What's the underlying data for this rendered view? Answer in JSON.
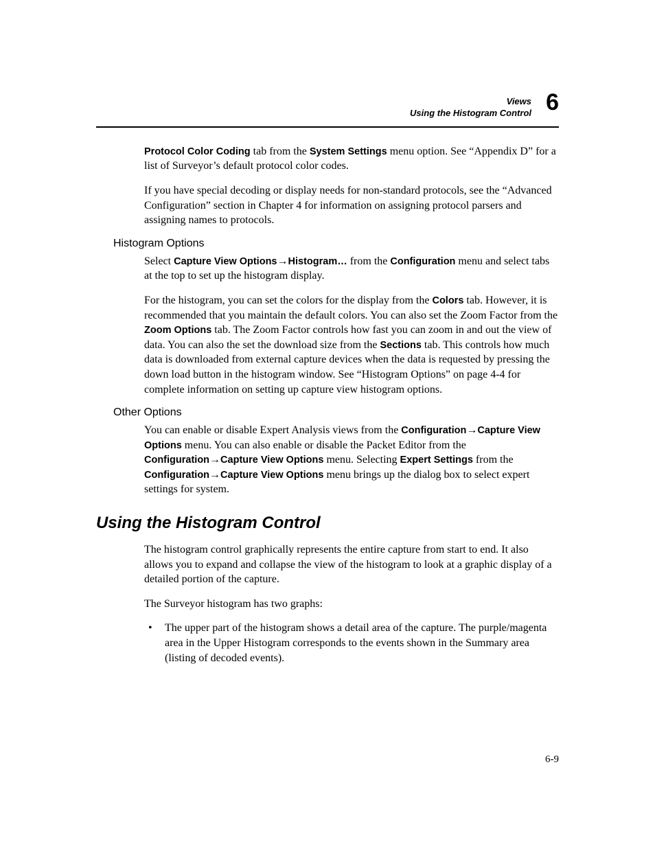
{
  "header": {
    "line1": "Views",
    "line2": "Using the Histogram Control",
    "chapter": "6"
  },
  "para1": {
    "bold1": "Protocol Color Coding",
    "t1": " tab from the ",
    "bold2": "System Settings",
    "t2": " menu option. See “Appendix D” for a list of Surveyor’s default protocol color codes."
  },
  "para2": "If you have special decoding or display needs for non-standard protocols, see the “Advanced Configuration” section in Chapter 4 for information on assigning protocol parsers and assigning names to protocols.",
  "histogram": {
    "heading": "Histogram Options",
    "p1": {
      "t0": "Select ",
      "b1": "Capture View Options",
      "arrow": "→",
      "b2": "Histogram…",
      "t1": " from the ",
      "b3": "Configuration",
      "t2": " menu and select tabs at the top to set up the histogram display."
    },
    "p2": {
      "t0": "For the histogram, you can set the colors for the display from the ",
      "b1": "Colors",
      "t1": " tab. However, it is recommended that you maintain the default colors. You can also set the Zoom Factor from the ",
      "b2": "Zoom Options",
      "t2": " tab. The Zoom Factor controls how fast you can zoom in and out the view of data. You can also the set the download size from the ",
      "b3": "Sections",
      "t3": " tab. This controls how much data is downloaded from external capture devices when the data is requested by pressing the down load button in the histogram window. See “Histogram Options” on page 4-4 for complete information on setting up capture view histogram options."
    }
  },
  "other": {
    "heading": "Other Options",
    "p1": {
      "t0": "You can enable or disable Expert Analysis views from the ",
      "b1": "Configuration",
      "arrow": "→",
      "b2": "Capture View Options",
      "t1": " menu. You can also enable or disable the Packet Editor from the ",
      "b3": "Configuration",
      "b4": "Capture View Options",
      "t2": " menu. Selecting ",
      "b5": "Expert Settings",
      "t3": " from the ",
      "b6": "Configuration",
      "b7": "Capture View Options",
      "t4": " menu brings up the dialog box to select expert settings for system."
    }
  },
  "section": {
    "heading": "Using the Histogram Control",
    "p1": "The histogram control graphically represents the entire capture from start to end. It also allows you to expand and collapse the view of the histogram to look at a graphic display of a detailed portion of the capture.",
    "p2": "The Surveyor histogram has two graphs:",
    "bullet1": "The upper part of the histogram shows a detail area of the capture. The purple/magenta area in the Upper Histogram corresponds to the events shown in the Summary area (listing of decoded events)."
  },
  "pageNumber": "6-9"
}
